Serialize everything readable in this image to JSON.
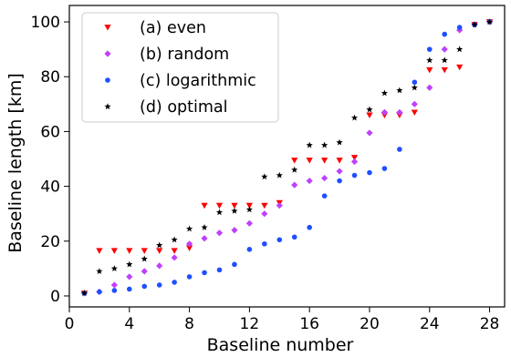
{
  "chart_data": {
    "type": "scatter",
    "title": "",
    "xlabel": "Baseline number",
    "ylabel": "Baseline length [km]",
    "xlim": [
      0,
      29
    ],
    "ylim": [
      -4,
      106
    ],
    "xticks": [
      0,
      4,
      8,
      12,
      16,
      20,
      24,
      28
    ],
    "yticks": [
      0,
      20,
      40,
      60,
      80,
      100
    ],
    "grid": false,
    "legend_position": "top-left",
    "x": [
      1,
      2,
      3,
      4,
      5,
      6,
      7,
      8,
      9,
      10,
      11,
      12,
      13,
      14,
      15,
      16,
      17,
      18,
      19,
      20,
      21,
      22,
      23,
      24,
      25,
      26,
      27,
      28
    ],
    "series": [
      {
        "name": "(a) even",
        "marker": "triangle-down",
        "color": "#ff0000",
        "values": [
          1,
          16.5,
          16.5,
          16.5,
          16.5,
          16.5,
          16.5,
          17.5,
          33,
          33,
          33,
          33,
          33,
          34,
          49.5,
          49.5,
          49.5,
          49.5,
          50.5,
          66,
          66,
          66,
          67,
          82.5,
          82.5,
          83.5,
          99,
          100
        ]
      },
      {
        "name": "(b) random",
        "marker": "diamond",
        "color": "#bf40ff",
        "values": [
          1,
          1.5,
          4,
          7,
          9,
          11,
          14,
          19,
          21,
          23,
          24,
          26.5,
          30,
          33,
          40.5,
          42,
          43,
          45.5,
          49,
          59.5,
          67,
          67,
          70,
          76,
          90,
          97,
          99,
          100
        ]
      },
      {
        "name": "(c) logarithmic",
        "marker": "circle",
        "color": "#1f4fff",
        "values": [
          1,
          1.5,
          2,
          2.5,
          3.5,
          4,
          5,
          7,
          8.5,
          9.5,
          11.5,
          17,
          19,
          20.5,
          21.5,
          25,
          36.5,
          42,
          44,
          45,
          46.5,
          53.5,
          78,
          90,
          95.5,
          98,
          99,
          100
        ]
      },
      {
        "name": "(d) optimal",
        "marker": "star",
        "color": "#000000",
        "values": [
          1,
          9,
          10,
          11.5,
          13.5,
          18.5,
          20.5,
          24.5,
          25,
          30.5,
          31,
          31.5,
          43.5,
          44,
          46,
          55,
          55,
          56,
          65,
          68,
          74,
          75,
          76,
          86,
          86,
          90,
          99,
          100
        ]
      }
    ]
  }
}
